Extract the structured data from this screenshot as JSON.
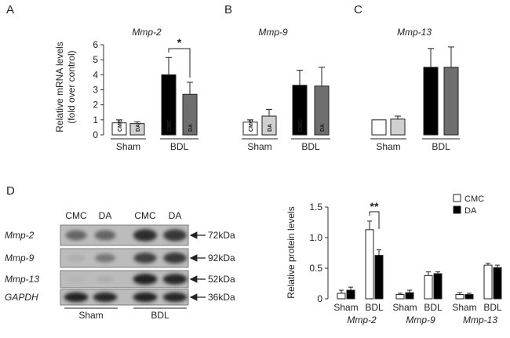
{
  "colors": {
    "cmc": "#ffffff",
    "da": "#d0d0d0",
    "cmc_bdl": "#000000",
    "da_bdl": "#6e6e6e",
    "d_cmc": "#ffffff",
    "d_da": "#000000",
    "axis": "#333333"
  },
  "chart_data": [
    {
      "id": "A",
      "type": "bar",
      "panel_label": "A",
      "title": "Mmp-2",
      "ylabel_lines": [
        "Relative mRNA levels",
        "(fold over control)"
      ],
      "ylim": [
        0,
        6
      ],
      "yticks": [
        "0",
        "1",
        "2",
        "3",
        "4",
        "5",
        "6"
      ],
      "groups": [
        "Sham",
        "BDL"
      ],
      "series": [
        {
          "name": "CMC",
          "values": [
            0.8,
            4.0
          ],
          "errors": [
            0.2,
            1.15
          ]
        },
        {
          "name": "DA",
          "values": [
            0.75,
            2.7
          ],
          "errors": [
            0.12,
            0.8
          ]
        }
      ],
      "significance": [
        {
          "group": "BDL",
          "label": "*"
        }
      ]
    },
    {
      "id": "B",
      "type": "bar",
      "panel_label": "B",
      "title": "Mmp-9",
      "ylim": [
        0,
        6
      ],
      "groups": [
        "Sham",
        "BDL"
      ],
      "series": [
        {
          "name": "CMC",
          "values": [
            0.85,
            3.3
          ],
          "errors": [
            0.15,
            1.0
          ]
        },
        {
          "name": "DA",
          "values": [
            1.25,
            3.25
          ],
          "errors": [
            0.45,
            1.25
          ]
        }
      ]
    },
    {
      "id": "C",
      "type": "bar",
      "panel_label": "C",
      "title": "Mmp-13",
      "ylim": [
        0,
        6
      ],
      "groups": [
        "Sham",
        "BDL"
      ],
      "series": [
        {
          "name": "CMC",
          "values": [
            1.0,
            4.5
          ],
          "errors": [
            0.0,
            1.25
          ]
        },
        {
          "name": "DA",
          "values": [
            1.05,
            4.5
          ],
          "errors": [
            0.2,
            1.35
          ]
        }
      ]
    },
    {
      "id": "D",
      "type": "bar",
      "panel_label": "D",
      "ylabel": "Relative protein levels",
      "ylim": [
        0,
        1.5
      ],
      "yticks": [
        "0",
        "0.5",
        "1.0",
        "1.5"
      ],
      "genes": [
        "Mmp-2",
        "Mmp-9",
        "Mmp-13"
      ],
      "groups": [
        "Sham",
        "BDL"
      ],
      "legend": [
        "CMC",
        "DA"
      ],
      "series": [
        {
          "name": "CMC",
          "values": [
            0.09,
            1.13,
            0.07,
            0.38,
            0.07,
            0.55
          ],
          "errors": [
            0.05,
            0.14,
            0.02,
            0.06,
            0.03,
            0.03
          ]
        },
        {
          "name": "DA",
          "values": [
            0.14,
            0.71,
            0.1,
            0.41,
            0.07,
            0.51
          ],
          "errors": [
            0.05,
            0.09,
            0.04,
            0.03,
            0.02,
            0.04
          ]
        }
      ],
      "significance": [
        {
          "gene": "Mmp-2",
          "group": "BDL",
          "label": "**"
        }
      ]
    }
  ],
  "blot": {
    "lanes": [
      "CMC",
      "DA",
      "CMC",
      "DA"
    ],
    "groups": [
      "Sham",
      "BDL"
    ],
    "rows": [
      {
        "label": "Mmp-2",
        "size": "72kDa",
        "intensity": [
          0.55,
          0.55,
          0.85,
          0.8
        ]
      },
      {
        "label": "Mmp-9",
        "size": "92kDa",
        "intensity": [
          0.15,
          0.45,
          0.75,
          0.8
        ]
      },
      {
        "label": "Mmp-13",
        "size": "52kDa",
        "intensity": [
          0.12,
          0.15,
          0.92,
          0.9
        ]
      },
      {
        "label": "GAPDH",
        "size": "36kDa",
        "intensity": [
          0.92,
          0.9,
          0.92,
          0.9
        ]
      }
    ]
  }
}
